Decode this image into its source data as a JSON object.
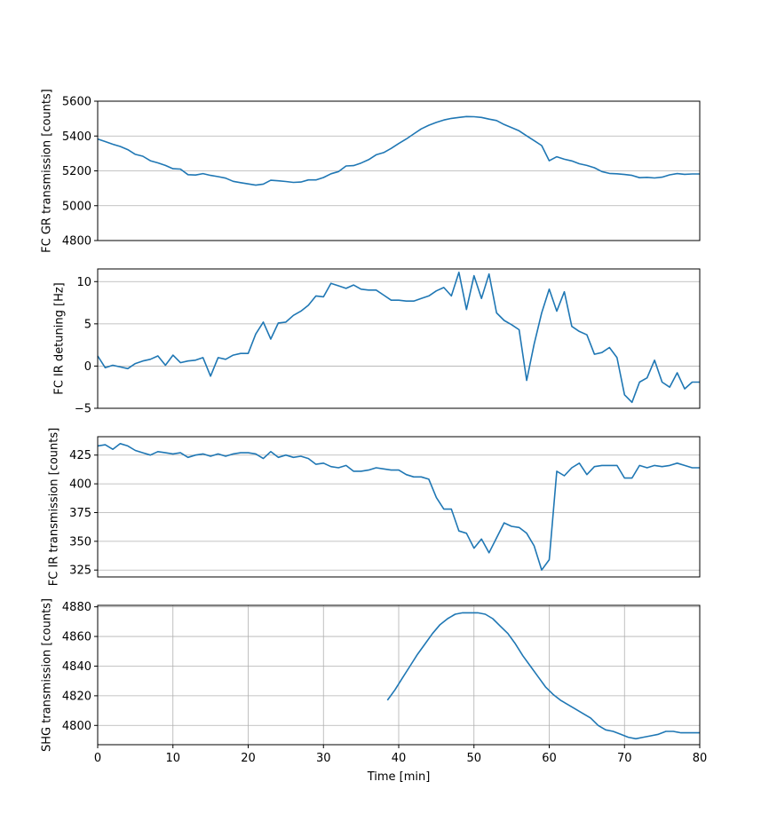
{
  "chart_data": [
    {
      "type": "line",
      "ylabel": "FC GR transmission [counts]",
      "xlabel": "",
      "xlim": [
        0,
        80
      ],
      "ylim": [
        4800,
        5600
      ],
      "yticks": [
        "4800",
        "5000",
        "5200",
        "5400",
        "5600"
      ],
      "ytick_values": [
        4800,
        5000,
        5200,
        5400,
        5600
      ],
      "grid": "y",
      "show_xticks": false,
      "color": "#1f77b4",
      "x": [
        0,
        1,
        2,
        3,
        4,
        5,
        6,
        7,
        8,
        9,
        10,
        11,
        12,
        13,
        14,
        15,
        16,
        17,
        18,
        19,
        20,
        21,
        22,
        23,
        24,
        25,
        26,
        27,
        28,
        29,
        30,
        31,
        32,
        33,
        34,
        35,
        36,
        37,
        38,
        39,
        40,
        41,
        42,
        43,
        44,
        45,
        46,
        47,
        48,
        49,
        50,
        51,
        52,
        53,
        54,
        55,
        56,
        57,
        58,
        59,
        60,
        61,
        62,
        63,
        64,
        65,
        66,
        67,
        68,
        69,
        70,
        71,
        72,
        73,
        74,
        75,
        76,
        77,
        78,
        79,
        80
      ],
      "y": [
        5383,
        5368,
        5353,
        5340,
        5322,
        5295,
        5284,
        5258,
        5246,
        5231,
        5212,
        5210,
        5178,
        5176,
        5184,
        5174,
        5167,
        5158,
        5140,
        5132,
        5125,
        5118,
        5124,
        5146,
        5143,
        5139,
        5134,
        5136,
        5148,
        5148,
        5162,
        5183,
        5196,
        5228,
        5230,
        5245,
        5264,
        5292,
        5305,
        5329,
        5357,
        5383,
        5412,
        5441,
        5462,
        5478,
        5492,
        5501,
        5507,
        5512,
        5511,
        5507,
        5497,
        5489,
        5466,
        5448,
        5430,
        5401,
        5374,
        5345,
        5258,
        5281,
        5267,
        5257,
        5241,
        5231,
        5218,
        5196,
        5185,
        5183,
        5179,
        5174,
        5161,
        5163,
        5159,
        5164,
        5177,
        5184,
        5180,
        5182,
        5182
      ]
    },
    {
      "type": "line",
      "ylabel": "FC IR detuning [Hz]",
      "xlabel": "",
      "xlim": [
        0,
        80
      ],
      "ylim": [
        -5,
        11.5
      ],
      "yticks": [
        "−5",
        "0",
        "5",
        "10"
      ],
      "ytick_values": [
        -5,
        0,
        5,
        10
      ],
      "grid": "y",
      "show_xticks": false,
      "color": "#1f77b4",
      "x": [
        0,
        1,
        2,
        3,
        4,
        5,
        6,
        7,
        8,
        9,
        10,
        11,
        12,
        13,
        14,
        15,
        16,
        17,
        18,
        19,
        20,
        21,
        22,
        23,
        24,
        25,
        26,
        27,
        28,
        29,
        30,
        31,
        32,
        33,
        34,
        35,
        36,
        37,
        38,
        39,
        40,
        41,
        42,
        43,
        44,
        45,
        46,
        47,
        48,
        49,
        50,
        51,
        52,
        53,
        54,
        55,
        56,
        57,
        58,
        59,
        60,
        61,
        62,
        63,
        64,
        65,
        66,
        67,
        68,
        69,
        70,
        71,
        72,
        73,
        74,
        75,
        76,
        77,
        78,
        79,
        80
      ],
      "y": [
        1.2,
        -0.2,
        0.1,
        -0.1,
        -0.3,
        0.3,
        0.6,
        0.8,
        1.2,
        0.1,
        1.3,
        0.4,
        0.6,
        0.7,
        1.0,
        -1.2,
        1.0,
        0.8,
        1.3,
        1.5,
        1.5,
        3.8,
        5.2,
        3.2,
        5.1,
        5.2,
        6.0,
        6.5,
        7.2,
        8.3,
        8.2,
        9.8,
        9.5,
        9.2,
        9.6,
        9.1,
        9.0,
        9.0,
        8.4,
        7.8,
        7.8,
        7.7,
        7.7,
        8.0,
        8.3,
        8.9,
        9.3,
        8.3,
        11.1,
        6.7,
        10.7,
        8.0,
        10.9,
        6.3,
        5.4,
        4.9,
        4.3,
        -1.7,
        2.6,
        6.3,
        9.1,
        6.5,
        8.8,
        4.7,
        4.1,
        3.7,
        1.4,
        1.6,
        2.2,
        1.0,
        -3.4,
        -4.3,
        -1.9,
        -1.4,
        0.7,
        -1.9,
        -2.5,
        -0.8,
        -2.7,
        -1.9,
        -1.9
      ]
    },
    {
      "type": "line",
      "ylabel": "FC IR transmission [counts]",
      "xlabel": "",
      "xlim": [
        0,
        80
      ],
      "ylim": [
        319,
        441
      ],
      "yticks": [
        "325",
        "350",
        "375",
        "400",
        "425"
      ],
      "ytick_values": [
        325,
        350,
        375,
        400,
        425
      ],
      "grid": "y",
      "show_xticks": false,
      "color": "#1f77b4",
      "x": [
        0,
        1,
        2,
        3,
        4,
        5,
        6,
        7,
        8,
        9,
        10,
        11,
        12,
        13,
        14,
        15,
        16,
        17,
        18,
        19,
        20,
        21,
        22,
        23,
        24,
        25,
        26,
        27,
        28,
        29,
        30,
        31,
        32,
        33,
        34,
        35,
        36,
        37,
        38,
        39,
        40,
        41,
        42,
        43,
        44,
        45,
        46,
        47,
        48,
        49,
        50,
        51,
        52,
        53,
        54,
        55,
        56,
        57,
        58,
        59,
        60,
        61,
        62,
        63,
        64,
        65,
        66,
        67,
        68,
        69,
        70,
        71,
        72,
        73,
        74,
        75,
        76,
        77,
        78,
        79,
        80
      ],
      "y": [
        433,
        434,
        430,
        435,
        433,
        429,
        427,
        425,
        428,
        427,
        426,
        427,
        423,
        425,
        426,
        424,
        426,
        424,
        426,
        427,
        427,
        426,
        422,
        428,
        423,
        425,
        423,
        424,
        422,
        417,
        418,
        415,
        414,
        416,
        411,
        411,
        412,
        414,
        413,
        412,
        412,
        408,
        406,
        406,
        404,
        388,
        378,
        378,
        359,
        357,
        344,
        352,
        340,
        353,
        366,
        363,
        362,
        357,
        346,
        325,
        334,
        411,
        407,
        414,
        418,
        408,
        415,
        416,
        416,
        416,
        405,
        405,
        416,
        414,
        416,
        415,
        416,
        418,
        416,
        414,
        414
      ]
    },
    {
      "type": "line",
      "ylabel": "SHG transmission [counts]",
      "xlabel": "Time [min]",
      "xlim": [
        0,
        80
      ],
      "ylim": [
        4787,
        4881
      ],
      "yticks": [
        "4800",
        "4820",
        "4840",
        "4860",
        "4880"
      ],
      "ytick_values": [
        4800,
        4820,
        4840,
        4860,
        4880
      ],
      "xticks": [
        "0",
        "10",
        "20",
        "30",
        "40",
        "50",
        "60",
        "70",
        "80"
      ],
      "xtick_values": [
        0,
        10,
        20,
        30,
        40,
        50,
        60,
        70,
        80
      ],
      "grid": "both",
      "show_xticks": true,
      "color": "#1f77b4",
      "x": [
        38.5,
        39.5,
        40.5,
        41.5,
        42.5,
        43.5,
        44.5,
        45.5,
        46.5,
        47.5,
        48.5,
        49.5,
        50.5,
        51.5,
        52.5,
        53.5,
        54.5,
        55.5,
        56.5,
        57.5,
        58.5,
        59.5,
        60.5,
        61.5,
        62.5,
        63.5,
        64.5,
        65.5,
        66.5,
        67.5,
        68.5,
        69.5,
        70.5,
        71.5,
        72.5,
        73.5,
        74.5,
        75.5,
        76.5,
        77.5,
        78.5,
        79.5,
        80
      ],
      "y": [
        4817,
        4824,
        4832,
        4840,
        4848,
        4855,
        4862,
        4868,
        4872,
        4875,
        4876,
        4876,
        4876,
        4875,
        4872,
        4867,
        4862,
        4855,
        4847,
        4840,
        4833,
        4826,
        4821,
        4817,
        4814,
        4811,
        4808,
        4805,
        4800,
        4797,
        4796,
        4794,
        4792,
        4791,
        4792,
        4793,
        4794,
        4796,
        4796,
        4795,
        4795,
        4795,
        4795
      ]
    }
  ]
}
